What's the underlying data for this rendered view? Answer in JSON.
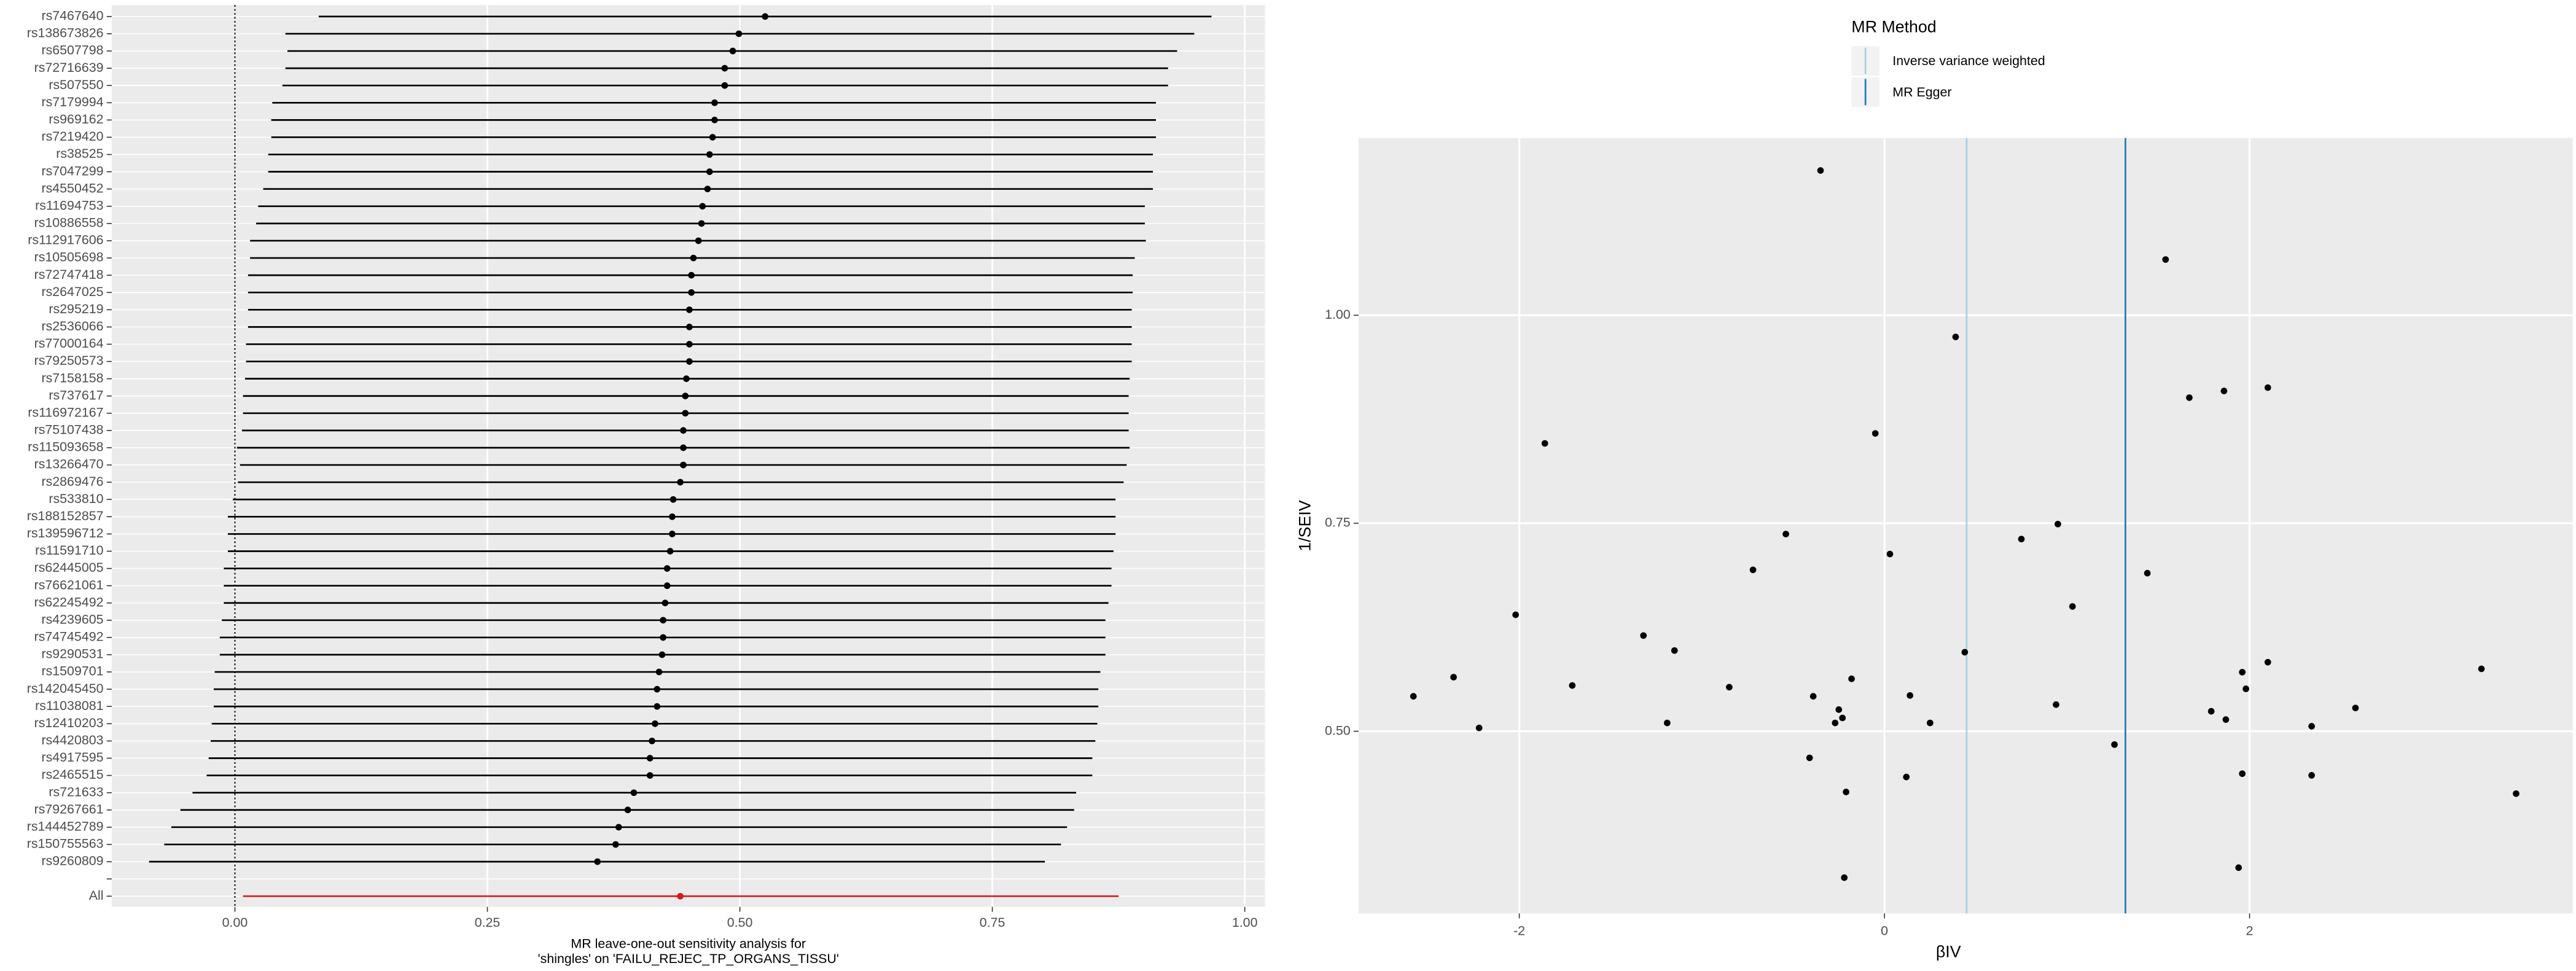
{
  "chart_data": [
    {
      "type": "forest",
      "x_label": [
        "MR leave-one-out sensitivity analysis for",
        "'shingles' on 'FAILU_REJEC_TP_ORGANS_TISSU'"
      ],
      "categories": [
        "rs7467640",
        "rs138673826",
        "rs6507798",
        "rs72716639",
        "rs507550",
        "rs7179994",
        "rs969162",
        "rs7219420",
        "rs38525",
        "rs7047299",
        "rs4550452",
        "rs11694753",
        "rs10886558",
        "rs112917606",
        "rs10505698",
        "rs72747418",
        "rs2647025",
        "rs295219",
        "rs2536066",
        "rs77000164",
        "rs79250573",
        "rs7158158",
        "rs737617",
        "rs116972167",
        "rs75107438",
        "rs115093658",
        "rs13266470",
        "rs2869476",
        "rs533810",
        "rs188152857",
        "rs139596712",
        "rs11591710",
        "rs62445005",
        "rs76621061",
        "rs62245492",
        "rs4239605",
        "rs74745492",
        "rs9290531",
        "rs1509701",
        "rs142045450",
        "rs11038081",
        "rs12410203",
        "rs4420803",
        "rs4917595",
        "rs2465515",
        "rs721633",
        "rs79267661",
        "rs144452789",
        "rs150755563",
        "rs9260809",
        null,
        "All"
      ],
      "values": [
        0.525,
        0.499,
        0.493,
        0.485,
        0.485,
        0.475,
        0.475,
        0.473,
        0.47,
        0.47,
        0.468,
        0.463,
        0.462,
        0.459,
        0.454,
        0.452,
        0.452,
        0.45,
        0.45,
        0.45,
        0.45,
        0.447,
        0.446,
        0.446,
        0.444,
        0.444,
        0.444,
        0.441,
        0.434,
        0.433,
        0.433,
        0.431,
        0.428,
        0.428,
        0.426,
        0.424,
        0.424,
        0.423,
        0.42,
        0.418,
        0.418,
        0.416,
        0.413,
        0.411,
        0.411,
        0.395,
        0.389,
        0.38,
        0.377,
        0.359,
        null,
        0.441
      ],
      "lower": [
        0.083,
        0.05,
        0.052,
        0.05,
        0.047,
        0.037,
        0.036,
        0.036,
        0.033,
        0.033,
        0.028,
        0.023,
        0.021,
        0.015,
        0.015,
        0.013,
        0.013,
        0.013,
        0.013,
        0.011,
        0.011,
        0.01,
        0.008,
        0.008,
        0.007,
        0.002,
        0.005,
        0.003,
        -0.002,
        -0.007,
        -0.007,
        -0.007,
        -0.011,
        -0.011,
        -0.011,
        -0.013,
        -0.015,
        -0.015,
        -0.02,
        -0.021,
        -0.021,
        -0.023,
        -0.024,
        -0.026,
        -0.028,
        -0.042,
        -0.054,
        -0.063,
        -0.07,
        -0.085,
        null,
        0.008
      ],
      "upper": [
        0.967,
        0.95,
        0.933,
        0.924,
        0.924,
        0.912,
        0.912,
        0.912,
        0.909,
        0.909,
        0.909,
        0.901,
        0.901,
        0.902,
        0.891,
        0.889,
        0.889,
        0.888,
        0.888,
        0.888,
        0.888,
        0.886,
        0.885,
        0.885,
        0.885,
        0.886,
        0.883,
        0.88,
        0.872,
        0.872,
        0.872,
        0.87,
        0.868,
        0.868,
        0.865,
        0.862,
        0.862,
        0.862,
        0.857,
        0.855,
        0.855,
        0.854,
        0.852,
        0.849,
        0.849,
        0.833,
        0.831,
        0.824,
        0.818,
        0.802,
        null,
        0.875
      ],
      "colors": [
        "#000000",
        "#000000",
        "#000000",
        "#000000",
        "#000000",
        "#000000",
        "#000000",
        "#000000",
        "#000000",
        "#000000",
        "#000000",
        "#000000",
        "#000000",
        "#000000",
        "#000000",
        "#000000",
        "#000000",
        "#000000",
        "#000000",
        "#000000",
        "#000000",
        "#000000",
        "#000000",
        "#000000",
        "#000000",
        "#000000",
        "#000000",
        "#000000",
        "#000000",
        "#000000",
        "#000000",
        "#000000",
        "#000000",
        "#000000",
        "#000000",
        "#000000",
        "#000000",
        "#000000",
        "#000000",
        "#000000",
        "#000000",
        "#000000",
        "#000000",
        "#000000",
        "#000000",
        "#000000",
        "#000000",
        "#000000",
        "#000000",
        "#000000",
        null,
        "#d7191c"
      ],
      "reference_line": 0,
      "xlim": [
        -0.122,
        1.02
      ],
      "xticks": [
        {
          "value": 0,
          "label": "0.00"
        },
        0.25,
        {
          "value": 0.5,
          "label": "0.50"
        },
        0.75,
        {
          "value": 1,
          "label": "1.00"
        }
      ],
      "grid": true
    },
    {
      "type": "scatter",
      "x_label": "βIV",
      "y_label": "1/SEIV",
      "legend_title": "MR Method",
      "lines": [
        {
          "name": "Inverse variance weighted",
          "value": 0.45,
          "color": "#a6cee3"
        },
        {
          "name": "MR Egger",
          "value": 1.32,
          "color": "#1f78b4"
        }
      ],
      "x": [
        -0.35,
        1.54,
        0.39,
        1.67,
        1.86,
        2.1,
        -1.86,
        -0.05,
        -0.54,
        0.75,
        0.95,
        0.03,
        -0.72,
        1.44,
        1.03,
        -2.02,
        -1.32,
        -1.15,
        0.44,
        -2.58,
        -2.36,
        -1.71,
        -0.85,
        -0.39,
        -0.18,
        0.14,
        0.94,
        1.96,
        2.1,
        1.98,
        1.79,
        1.87,
        2.58,
        3.27,
        -0.25,
        -0.23,
        -0.27,
        -1.19,
        0.25,
        -2.22,
        2.34,
        -0.41,
        1.26,
        0.12,
        1.96,
        2.34,
        -0.21,
        3.46,
        1.94,
        -0.22
      ],
      "values": [
        1.174,
        1.067,
        0.974,
        0.901,
        0.909,
        0.913,
        0.846,
        0.858,
        0.737,
        0.731,
        0.749,
        0.713,
        0.694,
        0.69,
        0.65,
        0.64,
        0.615,
        0.597,
        0.595,
        0.542,
        0.565,
        0.555,
        0.553,
        0.542,
        0.563,
        0.543,
        0.532,
        0.571,
        0.583,
        0.551,
        0.524,
        0.514,
        0.528,
        0.575,
        0.526,
        0.516,
        0.51,
        0.51,
        0.51,
        0.504,
        0.506,
        0.468,
        0.484,
        0.445,
        0.449,
        0.447,
        0.427,
        0.425,
        0.336,
        0.324
      ],
      "color": "#000000",
      "xlim": [
        -2.88,
        3.77
      ],
      "ylim": [
        0.281,
        1.213
      ],
      "xticks": [
        -2,
        0,
        2
      ],
      "yticks": [
        {
          "value": 0.5,
          "label": "0.50"
        },
        0.75,
        {
          "value": 1,
          "label": "1.00"
        }
      ],
      "grid": true
    }
  ]
}
